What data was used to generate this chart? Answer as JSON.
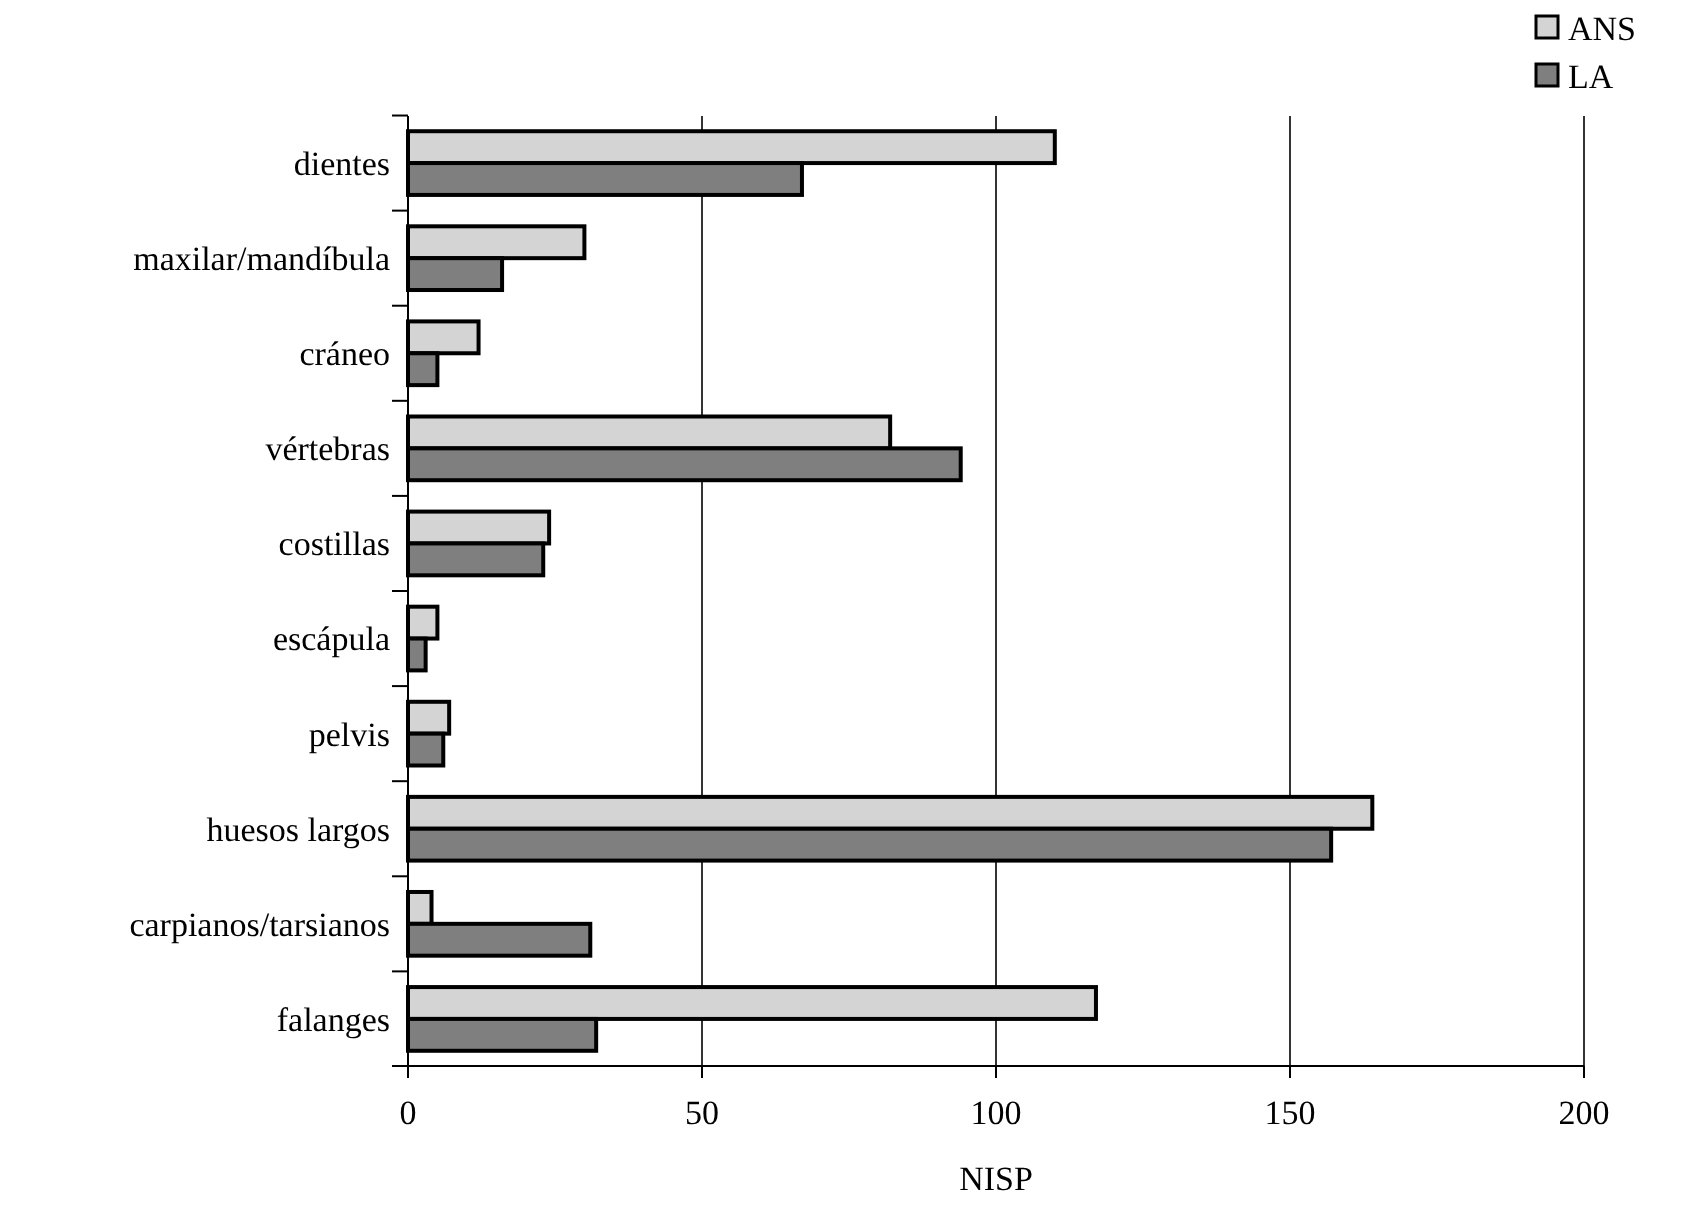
{
  "chart_data": {
    "type": "bar",
    "orientation": "horizontal",
    "xlabel": "NISP",
    "categories": [
      "dientes",
      "maxilar/mandíbula",
      "cráneo",
      "vértebras",
      "costillas",
      "escápula",
      "pelvis",
      "huesos largos",
      "carpianos/tarsianos",
      "falanges"
    ],
    "series": [
      {
        "name": "ANS",
        "color": "#d4d4d4",
        "values": [
          110,
          30,
          12,
          82,
          24,
          5,
          7,
          164,
          4,
          117
        ]
      },
      {
        "name": "LA",
        "color": "#7f7f7f",
        "values": [
          67,
          16,
          5,
          94,
          23,
          3,
          6,
          157,
          31,
          32
        ]
      }
    ],
    "xlim": [
      0,
      200
    ],
    "xticks": [
      0,
      50,
      100,
      150,
      200
    ],
    "grid": "x",
    "legend": "top right"
  }
}
